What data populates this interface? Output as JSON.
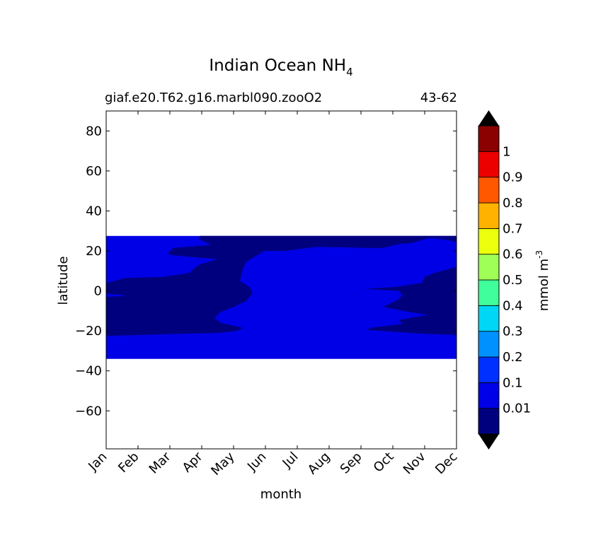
{
  "chart_data": {
    "type": "contourf",
    "title": "Indian Ocean NH",
    "title_subscript": "4",
    "subtitle_left": "giaf.e20.T62.g16.marbl090.zooO2",
    "subtitle_right": "43-62",
    "xlabel": "month",
    "ylabel": "latitude",
    "xlim": [
      0,
      11
    ],
    "ylim": [
      -79,
      90
    ],
    "x_ticks": [
      "Jan",
      "Feb",
      "Mar",
      "Apr",
      "May",
      "Jun",
      "Jul",
      "Aug",
      "Sep",
      "Oct",
      "Nov",
      "Dec"
    ],
    "y_ticks": [
      80,
      60,
      40,
      20,
      0,
      -20,
      -40,
      -60
    ],
    "data_lat_range": [
      -34,
      27.5
    ],
    "background_level_color": "#0000e6",
    "low_region_color": "#00007f",
    "low_region_polygon": [
      [
        0,
        27.5
      ],
      [
        11,
        27.5
      ],
      [
        11,
        26.5
      ],
      [
        10.1,
        26.4
      ],
      [
        9.6,
        24
      ],
      [
        9.2,
        23.5
      ],
      [
        8.7,
        21.5
      ],
      [
        8.2,
        21.5
      ],
      [
        7.4,
        21.8
      ],
      [
        6.6,
        22
      ],
      [
        5.6,
        20
      ],
      [
        4.95,
        20
      ],
      [
        4.6,
        16.5
      ],
      [
        4.4,
        14.5
      ],
      [
        4.3,
        11.5
      ],
      [
        4.2,
        5
      ],
      [
        4.5,
        2
      ],
      [
        4.6,
        -1
      ],
      [
        4.4,
        -5
      ],
      [
        4,
        -8
      ],
      [
        3.6,
        -10.5
      ],
      [
        3.4,
        -13.5
      ],
      [
        3.6,
        -16
      ],
      [
        4.3,
        -18.5
      ],
      [
        4.1,
        -20
      ],
      [
        3.5,
        -21
      ],
      [
        2.2,
        -21.5
      ],
      [
        1.2,
        -22
      ],
      [
        0,
        -22.5
      ],
      [
        0,
        -3
      ],
      [
        0.6,
        -2.5
      ],
      [
        0.5,
        -2
      ],
      [
        0,
        -1.5
      ],
      [
        0,
        4
      ],
      [
        0.6,
        6.5
      ],
      [
        1.8,
        7
      ],
      [
        2.6,
        9
      ],
      [
        2.9,
        13
      ],
      [
        3.5,
        16
      ],
      [
        3.0,
        16.5
      ],
      [
        2.0,
        18
      ],
      [
        1.95,
        19
      ],
      [
        2.1,
        21.5
      ],
      [
        3.3,
        23
      ],
      [
        2.9,
        26
      ],
      [
        2.95,
        27.5
      ],
      [
        0,
        27.5
      ]
    ],
    "low_region_polygon_2": [
      [
        11,
        26.5
      ],
      [
        11,
        -22
      ],
      [
        10.0,
        -21.5
      ],
      [
        8.2,
        -19.5
      ],
      [
        8.3,
        -18.5
      ],
      [
        9.3,
        -16.5
      ],
      [
        9.2,
        -14.5
      ],
      [
        10.1,
        -12
      ],
      [
        9.5,
        -10.5
      ],
      [
        8.7,
        -8
      ],
      [
        9.2,
        -4
      ],
      [
        9.3,
        -2
      ],
      [
        9.2,
        0
      ],
      [
        8.1,
        1
      ],
      [
        9.1,
        2
      ],
      [
        9.9,
        4
      ],
      [
        10.0,
        7
      ],
      [
        10.3,
        9
      ],
      [
        11,
        12
      ],
      [
        11,
        24.5
      ],
      [
        10.7,
        25.5
      ],
      [
        10.3,
        26.2
      ],
      [
        11,
        26.5
      ]
    ],
    "colorbar": {
      "label": "mmol m",
      "label_superscript": "-3",
      "level_labels": [
        "0.01",
        "0.1",
        "0.2",
        "0.3",
        "0.4",
        "0.5",
        "0.6",
        "0.7",
        "0.8",
        "0.9",
        "1"
      ],
      "segment_colors": [
        "#00007f",
        "#0000e6",
        "#0030ff",
        "#0091ff",
        "#00d6f5",
        "#40ff9a",
        "#a0ff56",
        "#ecff0c",
        "#ffb300",
        "#ff5800",
        "#ec0000",
        "#8b0000"
      ],
      "under_color": "#000000",
      "over_color": "#000000"
    }
  }
}
